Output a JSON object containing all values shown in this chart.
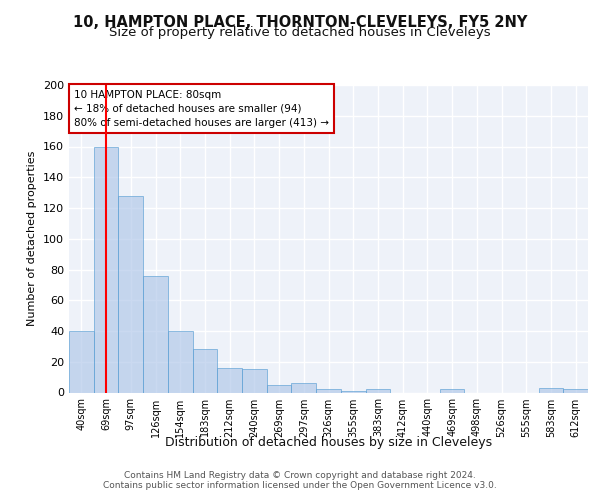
{
  "title": "10, HAMPTON PLACE, THORNTON-CLEVELEYS, FY5 2NY",
  "subtitle": "Size of property relative to detached houses in Cleveleys",
  "xlabel": "Distribution of detached houses by size in Cleveleys",
  "ylabel": "Number of detached properties",
  "categories": [
    "40sqm",
    "69sqm",
    "97sqm",
    "126sqm",
    "154sqm",
    "183sqm",
    "212sqm",
    "240sqm",
    "269sqm",
    "297sqm",
    "326sqm",
    "355sqm",
    "383sqm",
    "412sqm",
    "440sqm",
    "469sqm",
    "498sqm",
    "526sqm",
    "555sqm",
    "583sqm",
    "612sqm"
  ],
  "values": [
    40,
    160,
    128,
    76,
    40,
    28,
    16,
    15,
    5,
    6,
    2,
    1,
    2,
    0,
    0,
    2,
    0,
    0,
    0,
    3,
    2
  ],
  "bar_color": "#aec6e8",
  "bar_edge_color": "#5a9fd4",
  "red_line_x": 1,
  "annotation_text": "10 HAMPTON PLACE: 80sqm\n← 18% of detached houses are smaller (94)\n80% of semi-detached houses are larger (413) →",
  "annotation_edge_color": "#cc0000",
  "footer_line1": "Contains HM Land Registry data © Crown copyright and database right 2024.",
  "footer_line2": "Contains public sector information licensed under the Open Government Licence v3.0.",
  "ylim": [
    0,
    200
  ],
  "yticks": [
    0,
    20,
    40,
    60,
    80,
    100,
    120,
    140,
    160,
    180,
    200
  ],
  "bg_color": "#eef2f9",
  "title_fontsize": 10.5,
  "subtitle_fontsize": 9.5
}
